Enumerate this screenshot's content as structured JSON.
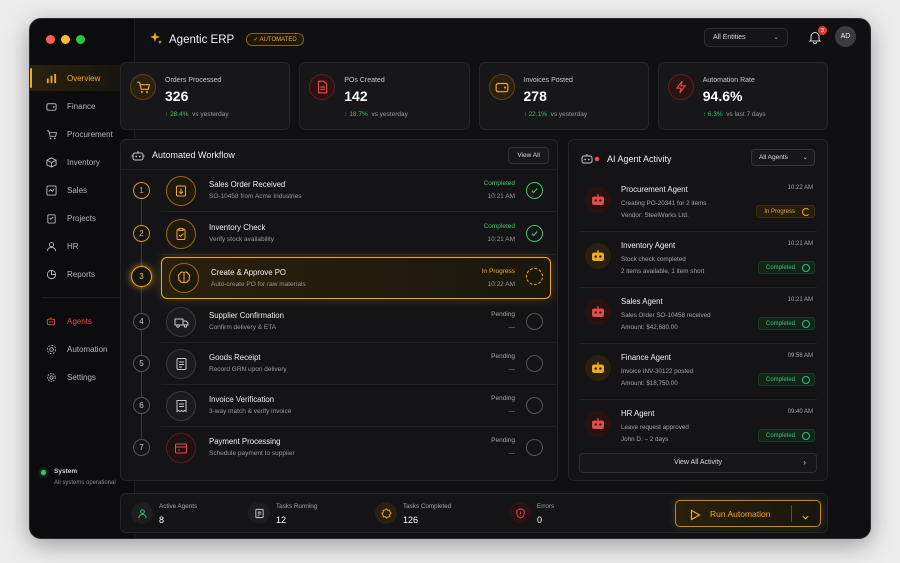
{
  "window": {
    "traffic": [
      "#ff5f57",
      "#febc2e",
      "#28c840"
    ]
  },
  "sidebar": {
    "items": [
      {
        "label": "Overview",
        "icon": "chart-bars-icon",
        "active": true
      },
      {
        "label": "Finance",
        "icon": "wallet-icon"
      },
      {
        "label": "Procurement",
        "icon": "cart-icon"
      },
      {
        "label": "Inventory",
        "icon": "box-icon"
      },
      {
        "label": "Sales",
        "icon": "sales-icon"
      },
      {
        "label": "Projects",
        "icon": "clipboard-icon"
      },
      {
        "label": "HR",
        "icon": "person-icon"
      },
      {
        "label": "Reports",
        "icon": "pie-chart-icon"
      }
    ],
    "items2": [
      {
        "label": "Agents",
        "icon": "robot-icon"
      },
      {
        "label": "Automation",
        "icon": "gear-icon"
      },
      {
        "label": "Settings",
        "icon": "settings-icon"
      }
    ],
    "system": {
      "title": "System",
      "status": "All systems operational"
    }
  },
  "header": {
    "title": "Agentic ERP",
    "badge": "AUTOMATED",
    "entities": "All Entities",
    "notifications": "3",
    "avatar": "AD"
  },
  "stats": [
    {
      "label": "Orders Processed",
      "value": "326",
      "change": "28.4%",
      "suffix": "vs yesterday",
      "color": "#f2a921",
      "icon": "cart-icon"
    },
    {
      "label": "POs Created",
      "value": "142",
      "change": "18.7%",
      "suffix": "vs yesterday",
      "color": "#e84b4b",
      "icon": "document-icon"
    },
    {
      "label": "Invoices Posted",
      "value": "278",
      "change": "22.1%",
      "suffix": "vs yesterday",
      "color": "#f2a921",
      "icon": "wallet-icon"
    },
    {
      "label": "Automation Rate",
      "value": "94.6%",
      "change": "6.3%",
      "suffix": "vs last 7 days",
      "color": "#e84b4b",
      "icon": "bolt-icon"
    }
  ],
  "workflow": {
    "title": "Automated Workflow",
    "view_all": "View All",
    "steps": [
      {
        "n": "1",
        "name": "Sales Order Received",
        "desc": "SO-10458 from Acme Industries",
        "status": "Completed",
        "time": "10:21 AM",
        "state": "done"
      },
      {
        "n": "2",
        "name": "Inventory Check",
        "desc": "Verify stock availability",
        "status": "Completed",
        "time": "10:21 AM",
        "state": "done"
      },
      {
        "n": "3",
        "name": "Create & Approve PO",
        "desc": "Auto-create PO for raw materials",
        "status": "In Progress",
        "time": "10:22 AM",
        "state": "active"
      },
      {
        "n": "4",
        "name": "Supplier Confirmation",
        "desc": "Confirm delivery & ETA",
        "status": "Pending",
        "time": "—",
        "state": "pending"
      },
      {
        "n": "5",
        "name": "Goods Receipt",
        "desc": "Record GRN upon delivery",
        "status": "Pending",
        "time": "—",
        "state": "pending"
      },
      {
        "n": "6",
        "name": "Invoice Verification",
        "desc": "3-way match & verify invoice",
        "status": "Pending",
        "time": "—",
        "state": "pending"
      },
      {
        "n": "7",
        "name": "Payment Processing",
        "desc": "Schedule payment to supplier",
        "status": "Pending",
        "time": "—",
        "state": "pending"
      }
    ]
  },
  "agents": {
    "title": "AI Agent Activity",
    "filter": "All Agents",
    "view_all": "View All Activity",
    "list": [
      {
        "name": "Procurement Agent",
        "line1": "Creating PO-20341 for 2 items",
        "line2": "Vendor: SteelWorks Ltd.",
        "time": "10:22 AM",
        "status": "In Progress",
        "kind": "prog",
        "color": "#e84b4b"
      },
      {
        "name": "Inventory Agent",
        "line1": "Stock check completed",
        "line2": "2 items available, 1 item short",
        "time": "10:21 AM",
        "status": "Completed",
        "kind": "done",
        "color": "#f2a921"
      },
      {
        "name": "Sales Agent",
        "line1": "Sales Order SO-10458 received",
        "line2": "Amount: $42,680.00",
        "time": "10:21 AM",
        "status": "Completed",
        "kind": "done",
        "color": "#e84b4b"
      },
      {
        "name": "Finance Agent",
        "line1": "Invoice INV-30122 posted",
        "line2": "Amount: $18,750.00",
        "time": "09:58 AM",
        "status": "Completed",
        "kind": "done",
        "color": "#f2a921"
      },
      {
        "name": "HR Agent",
        "line1": "Leave request approved",
        "line2": "John D. – 2 days",
        "time": "09:40 AM",
        "status": "Completed",
        "kind": "done",
        "color": "#e84b4b"
      }
    ]
  },
  "bottom": {
    "stats": [
      {
        "label": "Active Agents",
        "value": "8",
        "color": "#3ec46d",
        "icon": "agents-icon"
      },
      {
        "label": "Tasks Running",
        "value": "12",
        "color": "#c8c8cc",
        "icon": "tasks-icon"
      },
      {
        "label": "Tasks Completed",
        "value": "126",
        "color": "#f2a921",
        "icon": "completed-icon"
      },
      {
        "label": "Errors",
        "value": "0",
        "color": "#e84b4b",
        "icon": "shield-icon"
      }
    ],
    "run": "Run Automation"
  },
  "colors": {
    "accent": "#f2a921",
    "success": "#3ec46d",
    "danger": "#e84b4b"
  }
}
